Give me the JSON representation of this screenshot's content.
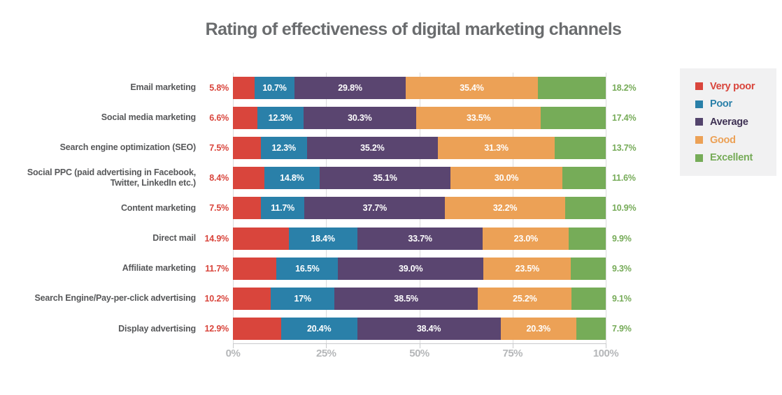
{
  "chart_data": {
    "type": "bar",
    "orientation": "horizontal",
    "stacked": true,
    "unit": "%",
    "title": "Rating of effectiveness of digital marketing channels",
    "categories": [
      "Email marketing",
      "Social media marketing",
      "Search engine optimization (SEO)",
      "Social PPC (paid advertising in Facebook,\nTwitter, LinkedIn etc.)",
      "Content marketing",
      "Direct mail",
      "Affiliate marketing",
      "Search Engine/Pay-per-click advertising",
      "Display advertising"
    ],
    "series": [
      {
        "name": "Very poor",
        "color": "#D9453C",
        "label_position": "outside-left",
        "label_color": "#D9453C",
        "values": [
          5.8,
          6.6,
          7.5,
          8.4,
          7.5,
          14.9,
          11.7,
          10.2,
          12.9
        ],
        "labels": [
          "5.8%",
          "6.6%",
          "7.5%",
          "8.4%",
          "7.5%",
          "14.9%",
          "11.7%",
          "10.2%",
          "12.9%"
        ]
      },
      {
        "name": "Poor",
        "color": "#2A80A9",
        "label_position": "inside",
        "label_color": "#FFFFFF",
        "values": [
          10.7,
          12.3,
          12.3,
          14.8,
          11.7,
          18.4,
          16.5,
          17,
          20.4
        ],
        "labels": [
          "10.7%",
          "12.3%",
          "12.3%",
          "14.8%",
          "11.7%",
          "18.4%",
          "16.5%",
          "17%",
          "20.4%"
        ]
      },
      {
        "name": "Average",
        "color": "#5A4570",
        "label_position": "inside",
        "label_color": "#FFFFFF",
        "values": [
          29.8,
          30.3,
          35.2,
          35.1,
          37.7,
          33.7,
          39.0,
          38.5,
          38.4
        ],
        "labels": [
          "29.8%",
          "30.3%",
          "35.2%",
          "35.1%",
          "37.7%",
          "33.7%",
          "39.0%",
          "38.5%",
          "38.4%"
        ]
      },
      {
        "name": "Good",
        "color": "#ECA156",
        "label_position": "inside",
        "label_color": "#FFFFFF",
        "values": [
          35.4,
          33.5,
          31.3,
          30.0,
          32.2,
          23.0,
          23.5,
          25.2,
          20.3
        ],
        "labels": [
          "35.4%",
          "33.5%",
          "31.3%",
          "30.0%",
          "32.2%",
          "23.0%",
          "23.5%",
          "25.2%",
          "20.3%"
        ]
      },
      {
        "name": "Excellent",
        "color": "#76AC58",
        "label_position": "outside-right",
        "label_color": "#76AB58",
        "values": [
          18.2,
          17.4,
          13.7,
          11.6,
          10.9,
          9.9,
          9.3,
          9.1,
          7.9
        ],
        "labels": [
          "18.2%",
          "17.4%",
          "13.7%",
          "11.6%",
          "10.9%",
          "9.9%",
          "9.3%",
          "9.1%",
          "7.9%"
        ]
      }
    ],
    "x_ticks": [
      "0%",
      "25%",
      "50%",
      "75%",
      "100%"
    ],
    "xlim": [
      0,
      100
    ],
    "grid": "vertical",
    "legend_position": "top-right"
  },
  "legend": {
    "background": "#F1F1F2",
    "items": [
      {
        "label": "Very poor",
        "color": "#D9453C",
        "text_color": "#D9453C"
      },
      {
        "label": "Poor",
        "color": "#2A80A9",
        "text_color": "#2A80A9"
      },
      {
        "label": "Average",
        "color": "#53446C",
        "text_color": "#3F3254"
      },
      {
        "label": "Good",
        "color": "#ECA156",
        "text_color": "#ECA156"
      },
      {
        "label": "Excellent",
        "color": "#76AC58",
        "text_color": "#76AB58"
      }
    ]
  },
  "axis": {
    "line_color": "#C9CACC",
    "label_color": "#B5B7B9",
    "gridline_color": "#DBDBDC"
  },
  "style": {
    "title_color": "#6A6C6E",
    "category_color": "#57585A"
  }
}
